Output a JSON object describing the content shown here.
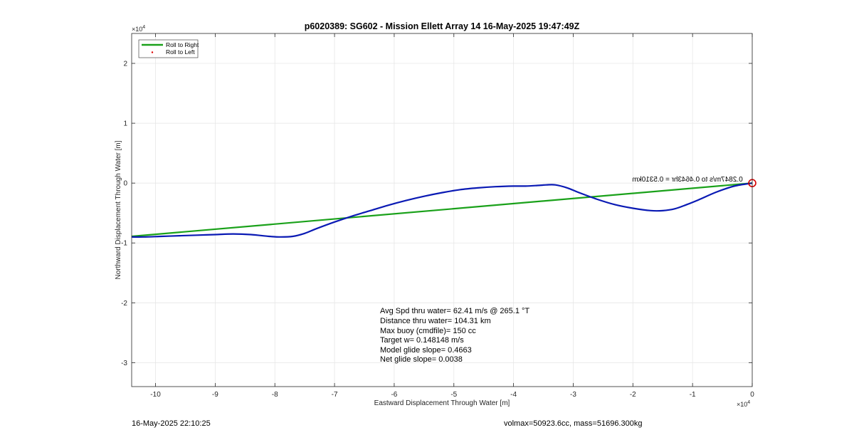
{
  "chart_data": {
    "type": "line",
    "title": "p6020389: SG602 - Mission Ellett Array 14 16-May-2025 19:47:49Z",
    "xlabel": "Eastward Displacement Through Water [m]",
    "ylabel": "Northward Displacement Through Water [m]",
    "x_exponent_label": "×10",
    "x_exponent_power": "4",
    "y_exponent_label": "×10",
    "y_exponent_power": "4",
    "xlim": [
      -10.4,
      0
    ],
    "ylim": [
      -3.4,
      2.5
    ],
    "scale_note": "axis values in units of 10^4 m",
    "x_ticks": [
      -10,
      -9,
      -8,
      -7,
      -6,
      -5,
      -4,
      -3,
      -2,
      -1,
      0
    ],
    "y_ticks": [
      -3,
      -2,
      -1,
      0,
      1,
      2
    ],
    "grid": true,
    "legend": {
      "placement": "top-left",
      "entries": [
        {
          "label": "Roll to Right",
          "color": "#1aa11a",
          "style": "line"
        },
        {
          "label": "Roll to Left",
          "color": "#e00000",
          "style": "dot"
        }
      ]
    },
    "series": [
      {
        "name": "Roll to Right",
        "color": "#1aa11a",
        "x": [
          0,
          -10.4
        ],
        "y": [
          0,
          -0.89
        ]
      },
      {
        "color": "#0a1ab4",
        "x": [
          0,
          -0.3,
          -0.6,
          -0.9,
          -1.1,
          -1.3,
          -1.5,
          -1.7,
          -2.0,
          -2.3,
          -2.6,
          -2.9,
          -3.1,
          -3.3,
          -3.45,
          -3.6,
          -3.8,
          -4.0,
          -4.3,
          -4.6,
          -4.9,
          -5.2,
          -5.5,
          -5.8,
          -6.1,
          -6.4,
          -6.7,
          -7.0,
          -7.3,
          -7.5,
          -7.7,
          -7.9,
          -8.1,
          -8.4,
          -8.7,
          -9.0,
          -9.3,
          -9.6,
          -9.9,
          -10.2,
          -10.4
        ],
        "y": [
          0,
          -0.05,
          -0.15,
          -0.28,
          -0.36,
          -0.43,
          -0.46,
          -0.46,
          -0.42,
          -0.36,
          -0.27,
          -0.16,
          -0.08,
          -0.03,
          -0.03,
          -0.04,
          -0.05,
          -0.05,
          -0.06,
          -0.08,
          -0.11,
          -0.16,
          -0.22,
          -0.29,
          -0.37,
          -0.46,
          -0.55,
          -0.65,
          -0.76,
          -0.84,
          -0.89,
          -0.9,
          -0.89,
          -0.86,
          -0.85,
          -0.86,
          -0.87,
          -0.88,
          -0.89,
          -0.9,
          -0.9
        ]
      }
    ],
    "end_marker": {
      "x": 0,
      "y": 0,
      "color": "#d40000"
    },
    "mirrored_annotation": "0.2847m/s to 0.4643hr = 0.5310km"
  },
  "stats": [
    "Avg Spd thru water= 62.41 m/s @ 265.1 °T",
    "Distance thru water= 104.31 km",
    "Max buoy (cmdfile)= 150 cc",
    "Target w= 0.148148 m/s",
    "Model glide slope= 0.4663",
    "Net glide slope= 0.0038"
  ],
  "footer": {
    "timestamp": "16-May-2025 22:10:25",
    "vol_mass": "volmax=50923.6cc, mass=51696.300kg"
  }
}
